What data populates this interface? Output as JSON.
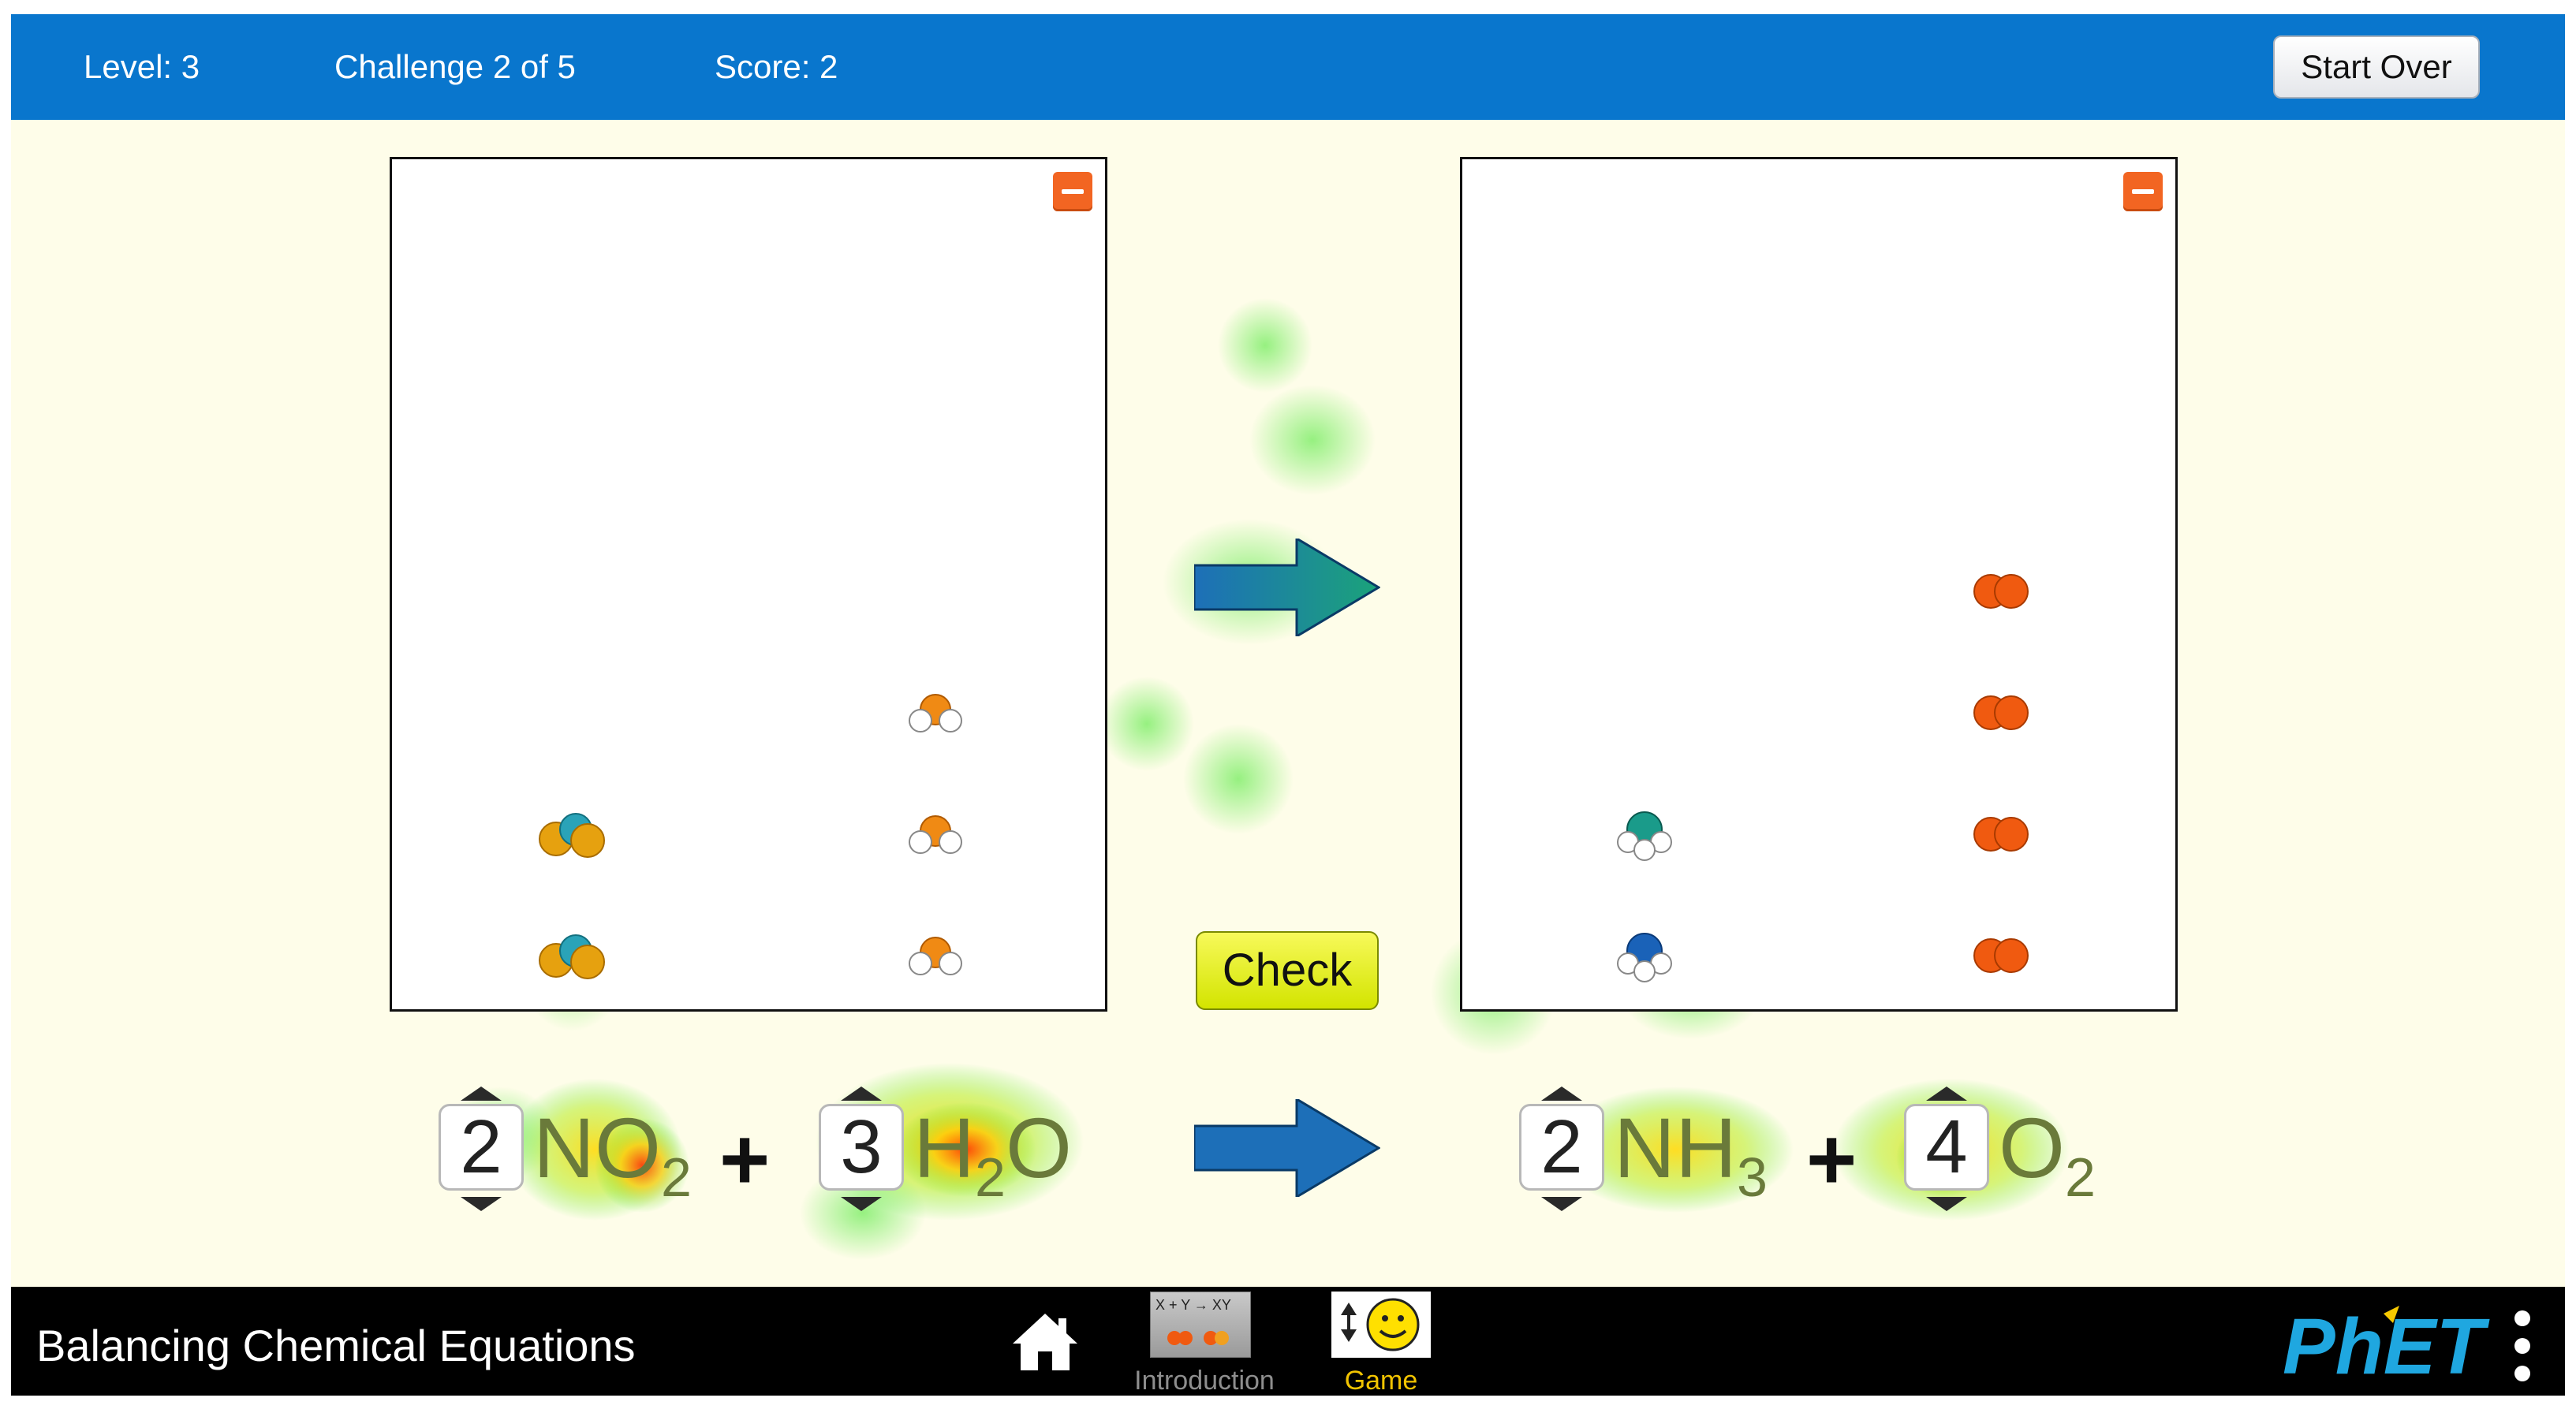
{
  "topbar": {
    "level": "Level: 3",
    "challenge": "Challenge 2 of 5",
    "score": "Score: 2",
    "start_over": "Start Over"
  },
  "check_label": "Check",
  "equation": {
    "reactants": [
      {
        "coefficient": "2",
        "formula": {
          "main": "NO",
          "sub": "2",
          "tail": ""
        }
      },
      {
        "coefficient": "3",
        "formula": {
          "main": "H",
          "sub": "2",
          "tail": "O"
        }
      }
    ],
    "products": [
      {
        "coefficient": "2",
        "formula": {
          "main": "NH",
          "sub": "3",
          "tail": ""
        }
      },
      {
        "coefficient": "4",
        "formula": {
          "main": "O",
          "sub": "2",
          "tail": ""
        }
      }
    ],
    "plus": "+"
  },
  "boxes": {
    "reactants": {
      "NO2_count": 2,
      "H2O_count": 3
    },
    "products": {
      "NH3_count": 2,
      "O2_count": 4
    }
  },
  "navbar": {
    "sim_title": "Balancing Chemical Equations",
    "tabs": [
      {
        "label": "Introduction",
        "icon": "introduction-screen-icon",
        "selected": false,
        "thumb_text": "X + Y → XY"
      },
      {
        "label": "Game",
        "icon": "game-screen-icon",
        "selected": true
      }
    ],
    "logo": "PhET"
  },
  "colors": {
    "topbar": "#0976cd",
    "background": "#fefde9",
    "navbar": "#000000",
    "check_button": "#e8f00c",
    "minus_button": "#f26522",
    "selected_tab": "#f2c400"
  }
}
